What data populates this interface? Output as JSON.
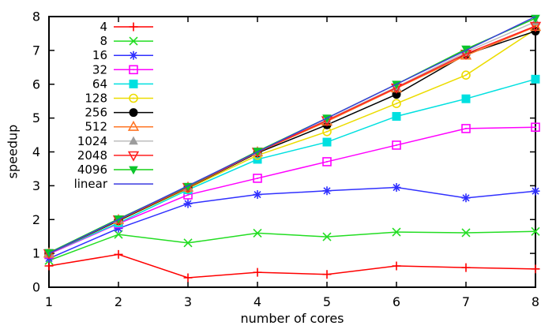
{
  "chart_data": {
    "type": "line",
    "title": "",
    "xlabel": "number of cores",
    "ylabel": "speedup",
    "xlim": [
      1,
      8
    ],
    "ylim": [
      0,
      8
    ],
    "xticks": [
      1,
      2,
      3,
      4,
      5,
      6,
      7,
      8
    ],
    "yticks": [
      0,
      1,
      2,
      3,
      4,
      5,
      6,
      7,
      8
    ],
    "grid": false,
    "legend_position": "top-left-inside",
    "background_color": "#ffffff",
    "axis_color": "#000000",
    "x": [
      1,
      2,
      3,
      4,
      5,
      6,
      7,
      8
    ],
    "series": [
      {
        "name": "4",
        "color": "#ff0000",
        "marker": "plus",
        "values": [
          0.63,
          0.97,
          0.28,
          0.44,
          0.38,
          0.63,
          0.58,
          0.54
        ]
      },
      {
        "name": "8",
        "color": "#22dd22",
        "marker": "cross",
        "values": [
          0.79,
          1.56,
          1.31,
          1.6,
          1.49,
          1.63,
          1.61,
          1.65
        ]
      },
      {
        "name": "16",
        "color": "#3030ff",
        "marker": "asterisk",
        "values": [
          0.85,
          1.74,
          2.47,
          2.74,
          2.85,
          2.95,
          2.64,
          2.84
        ]
      },
      {
        "name": "32",
        "color": "#ff00ff",
        "marker": "square-open",
        "values": [
          0.98,
          1.88,
          2.73,
          3.22,
          3.71,
          4.2,
          4.69,
          4.73
        ]
      },
      {
        "name": "64",
        "color": "#00e0e0",
        "marker": "square-filled",
        "values": [
          1.0,
          1.9,
          2.88,
          3.78,
          4.29,
          5.05,
          5.57,
          6.15
        ]
      },
      {
        "name": "128",
        "color": "#ecdc00",
        "marker": "circle-open",
        "values": [
          1.0,
          1.96,
          2.92,
          3.9,
          4.6,
          5.43,
          6.27,
          7.62
        ]
      },
      {
        "name": "256",
        "color": "#000000",
        "marker": "circle-filled",
        "values": [
          1.0,
          1.97,
          2.94,
          3.97,
          4.8,
          5.7,
          6.88,
          7.57
        ]
      },
      {
        "name": "512",
        "color": "#ff7626",
        "marker": "triangle-up-open",
        "values": [
          1.0,
          1.99,
          2.95,
          3.99,
          4.9,
          5.88,
          6.85,
          7.7
        ]
      },
      {
        "name": "1024",
        "color": "#bdbdbd",
        "marker_color": "#9c9c9c",
        "marker": "triangle-up-filled",
        "values": [
          1.01,
          2.0,
          2.96,
          4.0,
          4.95,
          5.92,
          6.95,
          7.85
        ]
      },
      {
        "name": "2048",
        "color": "#ff1f1f",
        "marker": "triangle-down-open",
        "values": [
          1.0,
          2.0,
          2.96,
          4.0,
          4.93,
          5.9,
          6.9,
          7.72
        ]
      },
      {
        "name": "4096",
        "color": "#17d117",
        "marker_color": "#0cc52c",
        "marker": "triangle-down-filled",
        "values": [
          1.02,
          2.02,
          2.98,
          4.02,
          5.0,
          6.0,
          7.04,
          7.95
        ]
      },
      {
        "name": "linear",
        "color": "#3a3ae0",
        "marker": "none",
        "values": [
          1,
          2,
          3,
          4,
          5,
          6,
          7,
          8
        ]
      }
    ]
  }
}
